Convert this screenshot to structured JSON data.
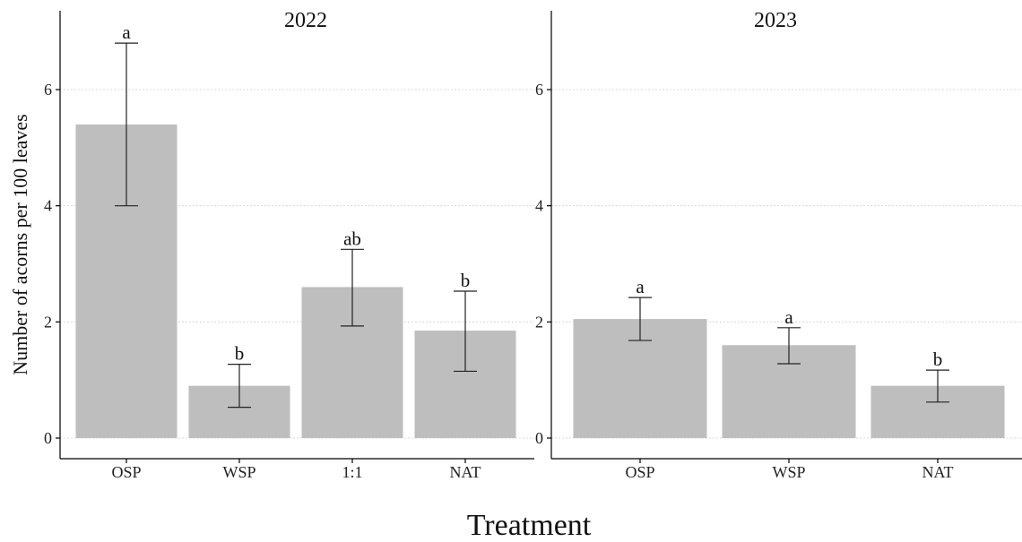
{
  "chart_data": {
    "type": "bar",
    "ylabel": "Number of acorns per 100 leaves",
    "xlabel": "Treatment",
    "ylim": [
      0,
      7
    ],
    "yticks": [
      0,
      2,
      4,
      6
    ],
    "grid": "horizontal dotted",
    "colors": {
      "bar": "#bebebe",
      "gridline": "#d8d8d8",
      "axis": "#000000"
    },
    "panels": [
      {
        "title": "2022",
        "categories": [
          "OSP",
          "WSP",
          "1:1",
          "NAT"
        ],
        "values": [
          5.4,
          0.9,
          2.6,
          1.85
        ],
        "error_low": [
          4.0,
          0.53,
          1.93,
          1.15
        ],
        "error_high": [
          6.8,
          1.27,
          3.25,
          2.53
        ],
        "significance": [
          "a",
          "b",
          "ab",
          "b"
        ]
      },
      {
        "title": "2023",
        "categories": [
          "OSP",
          "WSP",
          "NAT"
        ],
        "values": [
          2.05,
          1.6,
          0.9
        ],
        "error_low": [
          1.68,
          1.28,
          0.62
        ],
        "error_high": [
          2.42,
          1.9,
          1.17
        ],
        "significance": [
          "a",
          "a",
          "b"
        ]
      }
    ]
  }
}
